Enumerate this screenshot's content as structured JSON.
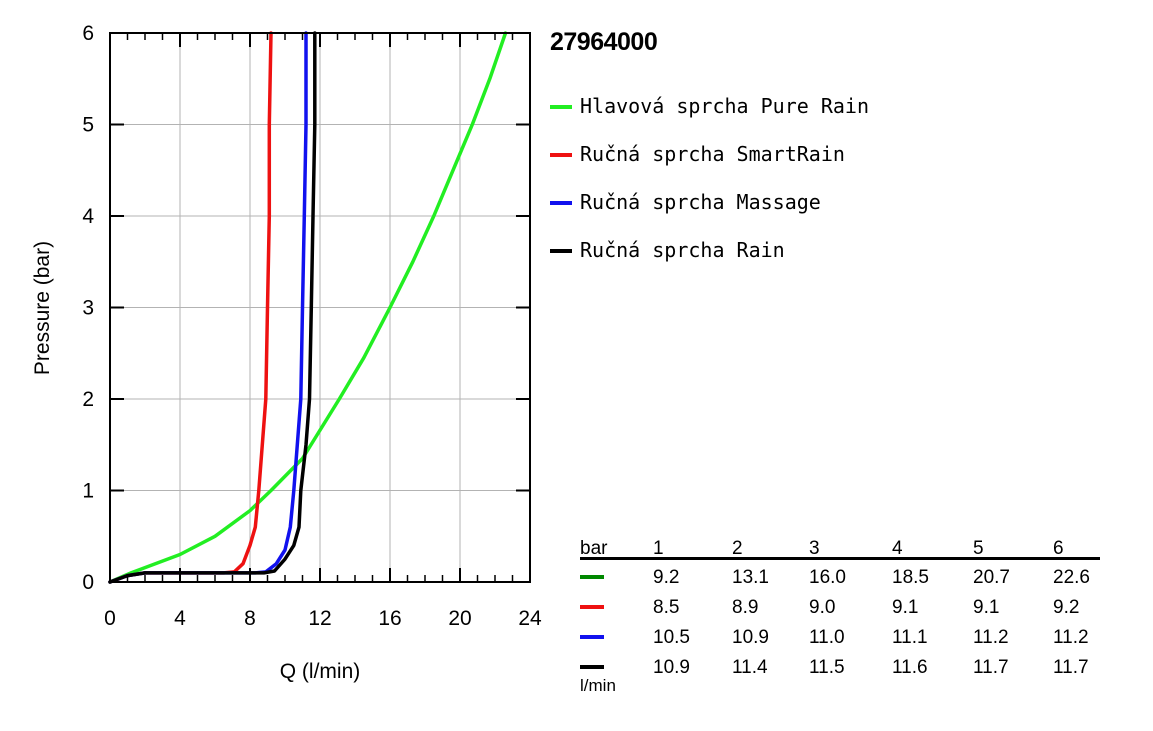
{
  "title": "27964000",
  "colors": {
    "green": "#22ee22",
    "red": "#ee1111",
    "blue": "#1111ee",
    "black": "#000000",
    "grid": "#b3b3b3",
    "table_green": "#008800"
  },
  "chart_data": {
    "type": "line",
    "xlabel": "Q (l/min)",
    "ylabel": "Pressure (bar)",
    "xlim": [
      0,
      24
    ],
    "ylim": [
      0,
      6
    ],
    "x_ticks": [
      "0",
      "4",
      "8",
      "12",
      "16",
      "20",
      "24"
    ],
    "y_ticks": [
      "0",
      "1",
      "2",
      "3",
      "4",
      "5",
      "6"
    ],
    "grid": true,
    "series": [
      {
        "name": "Hlavová sprcha Pure Rain",
        "color": "#22ee22",
        "points": [
          [
            0,
            0
          ],
          [
            1.2,
            0.1
          ],
          [
            4,
            0.3
          ],
          [
            6,
            0.5
          ],
          [
            8,
            0.78
          ],
          [
            9.2,
            1.0
          ],
          [
            11,
            1.35
          ],
          [
            13.1,
            2.0
          ],
          [
            14.5,
            2.45
          ],
          [
            16.0,
            3.0
          ],
          [
            17.3,
            3.5
          ],
          [
            18.5,
            4.0
          ],
          [
            19.6,
            4.5
          ],
          [
            20.7,
            5.0
          ],
          [
            21.7,
            5.5
          ],
          [
            22.6,
            6.0
          ]
        ]
      },
      {
        "name": "Ručná sprcha SmartRain",
        "color": "#ee1111",
        "points": [
          [
            0,
            0
          ],
          [
            1.0,
            0.07
          ],
          [
            2.0,
            0.1
          ],
          [
            6.5,
            0.1
          ],
          [
            7.1,
            0.11
          ],
          [
            7.6,
            0.2
          ],
          [
            8.0,
            0.4
          ],
          [
            8.3,
            0.6
          ],
          [
            8.5,
            1.0
          ],
          [
            8.7,
            1.5
          ],
          [
            8.9,
            2.0
          ],
          [
            9.0,
            3.0
          ],
          [
            9.1,
            4.0
          ],
          [
            9.1,
            5.0
          ],
          [
            9.2,
            6.0
          ]
        ]
      },
      {
        "name": "Ručná sprcha Massage",
        "color": "#1111ee",
        "points": [
          [
            0,
            0
          ],
          [
            1.0,
            0.07
          ],
          [
            2.0,
            0.1
          ],
          [
            8.3,
            0.1
          ],
          [
            8.9,
            0.11
          ],
          [
            9.5,
            0.2
          ],
          [
            10.0,
            0.35
          ],
          [
            10.3,
            0.6
          ],
          [
            10.5,
            1.0
          ],
          [
            10.7,
            1.5
          ],
          [
            10.9,
            2.0
          ],
          [
            11.0,
            3.0
          ],
          [
            11.1,
            4.0
          ],
          [
            11.2,
            5.0
          ],
          [
            11.2,
            6.0
          ]
        ]
      },
      {
        "name": "Ručná sprcha Rain",
        "color": "#000000",
        "points": [
          [
            0,
            0
          ],
          [
            1.0,
            0.07
          ],
          [
            2.0,
            0.1
          ],
          [
            8.8,
            0.1
          ],
          [
            9.4,
            0.12
          ],
          [
            10.0,
            0.25
          ],
          [
            10.5,
            0.4
          ],
          [
            10.8,
            0.6
          ],
          [
            10.9,
            1.0
          ],
          [
            11.2,
            1.5
          ],
          [
            11.4,
            2.0
          ],
          [
            11.5,
            3.0
          ],
          [
            11.6,
            4.0
          ],
          [
            11.7,
            5.0
          ],
          [
            11.7,
            6.0
          ]
        ]
      }
    ]
  },
  "table": {
    "header_label": "bar",
    "columns": [
      "1",
      "2",
      "3",
      "4",
      "5",
      "6"
    ],
    "unit": "l/min",
    "rows": [
      {
        "color": "#008800",
        "values": [
          "9.2",
          "13.1",
          "16.0",
          "18.5",
          "20.7",
          "22.6"
        ]
      },
      {
        "color": "#ee1111",
        "values": [
          "8.5",
          "8.9",
          "9.0",
          "9.1",
          "9.1",
          "9.2"
        ]
      },
      {
        "color": "#1111ee",
        "values": [
          "10.5",
          "10.9",
          "11.0",
          "11.1",
          "11.2",
          "11.2"
        ]
      },
      {
        "color": "#000000",
        "values": [
          "10.9",
          "11.4",
          "11.5",
          "11.6",
          "11.7",
          "11.7"
        ]
      }
    ]
  }
}
